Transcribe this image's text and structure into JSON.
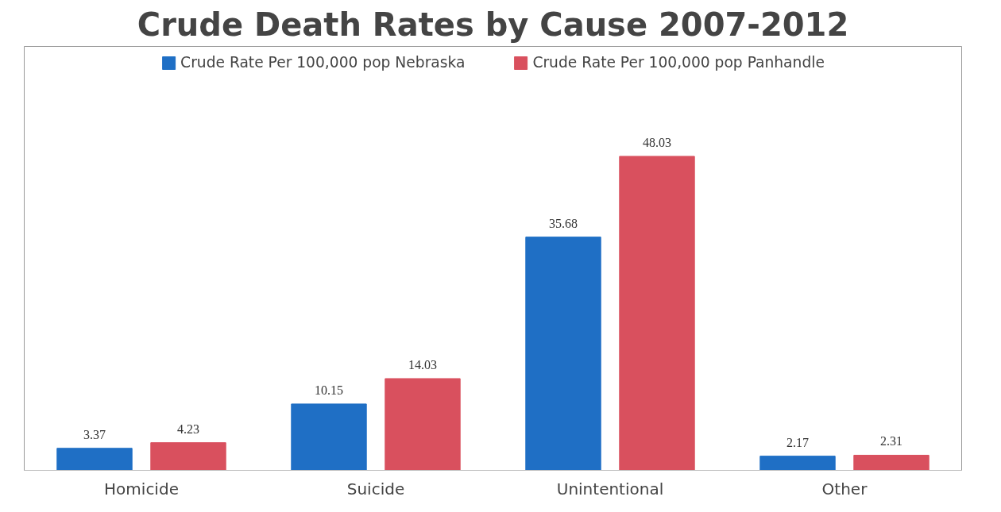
{
  "chart_data": {
    "type": "bar",
    "title": "Crude Death Rates by Cause 2007-2012",
    "categories": [
      "Homicide",
      "Suicide",
      "Unintentional",
      "Other"
    ],
    "series": [
      {
        "name": "Crude Rate Per 100,000 pop Nebraska",
        "color": "#1f6fc5",
        "values": [
          3.37,
          10.15,
          35.68,
          2.17
        ]
      },
      {
        "name": "Crude Rate Per 100,000 pop Panhandle",
        "color": "#d9505e",
        "values": [
          4.23,
          14.03,
          48.03,
          2.31
        ]
      }
    ],
    "data_labels": true,
    "legend": "top",
    "grid": false
  }
}
